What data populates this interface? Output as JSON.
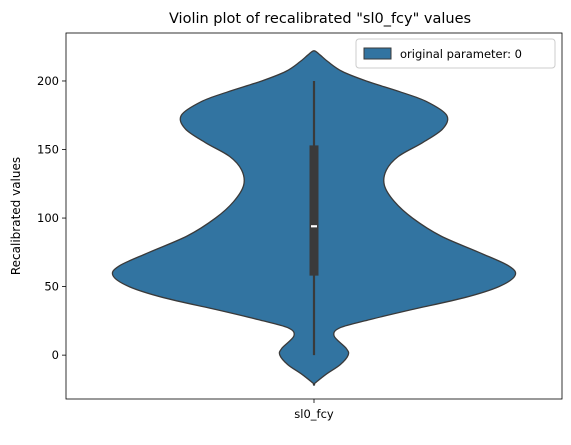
{
  "chart_data": {
    "type": "violin",
    "title": "Violin plot of recalibrated \"sl0_fcy\" values",
    "xlabel": "",
    "ylabel": "Recalibrated values",
    "categories": [
      "sl0_fcy"
    ],
    "ylim": [
      -32,
      235
    ],
    "yticks": [
      0,
      50,
      100,
      150,
      200
    ],
    "grid": false,
    "legend": {
      "placement": "top-right",
      "entries": [
        "original parameter: 0"
      ]
    },
    "colors": {
      "fill": "#3274a1",
      "edge": "#3a3a3a",
      "box": "#3a3a3a",
      "median": "#ffffff"
    },
    "series": [
      {
        "name": "original parameter: 0",
        "category": "sl0_fcy",
        "density_profile": [
          {
            "y": -21,
            "half_width": 0.0
          },
          {
            "y": -14,
            "half_width": 0.06
          },
          {
            "y": -7,
            "half_width": 0.13
          },
          {
            "y": 0,
            "half_width": 0.17
          },
          {
            "y": 5,
            "half_width": 0.16
          },
          {
            "y": 14,
            "half_width": 0.1
          },
          {
            "y": 20,
            "half_width": 0.13
          },
          {
            "y": 26,
            "half_width": 0.28
          },
          {
            "y": 33,
            "half_width": 0.48
          },
          {
            "y": 42,
            "half_width": 0.75
          },
          {
            "y": 50,
            "half_width": 0.92
          },
          {
            "y": 58,
            "half_width": 1.0
          },
          {
            "y": 65,
            "half_width": 0.97
          },
          {
            "y": 75,
            "half_width": 0.82
          },
          {
            "y": 87,
            "half_width": 0.63
          },
          {
            "y": 100,
            "half_width": 0.49
          },
          {
            "y": 112,
            "half_width": 0.4
          },
          {
            "y": 124,
            "half_width": 0.35
          },
          {
            "y": 135,
            "half_width": 0.36
          },
          {
            "y": 145,
            "half_width": 0.42
          },
          {
            "y": 155,
            "half_width": 0.54
          },
          {
            "y": 165,
            "half_width": 0.64
          },
          {
            "y": 175,
            "half_width": 0.66
          },
          {
            "y": 185,
            "half_width": 0.56
          },
          {
            "y": 192,
            "half_width": 0.43
          },
          {
            "y": 200,
            "half_width": 0.26
          },
          {
            "y": 207,
            "half_width": 0.14
          },
          {
            "y": 214,
            "half_width": 0.07
          },
          {
            "y": 219,
            "half_width": 0.03
          },
          {
            "y": 222,
            "half_width": 0.0
          }
        ],
        "whisker": [
          0,
          200
        ],
        "box": [
          58,
          153
        ],
        "median": 94
      }
    ]
  }
}
